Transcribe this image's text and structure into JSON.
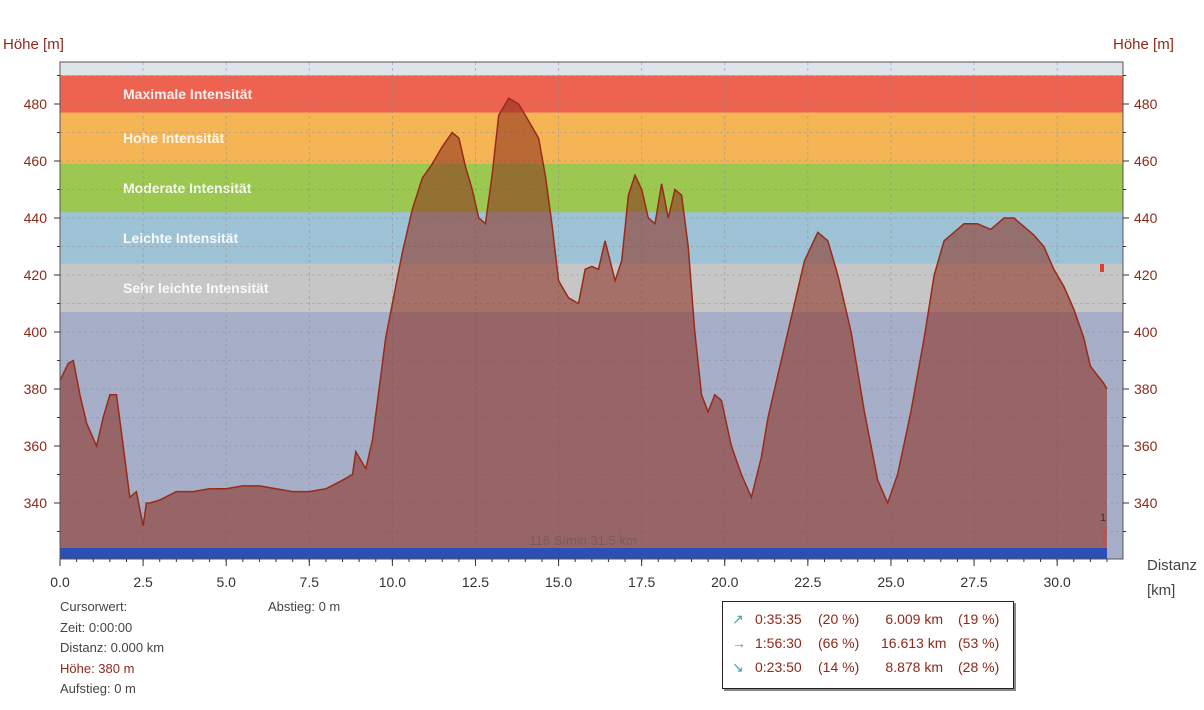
{
  "axes": {
    "y_label_left": "Höhe [m]",
    "y_label_right": "Höhe [m]",
    "x_label_line1": "Distanz",
    "x_label_line2": "[km]"
  },
  "zones": [
    {
      "name": "Maximale Intensität",
      "from": 477,
      "to": 490,
      "color": "#ee6250"
    },
    {
      "name": "Hohe Intensität",
      "from": 459,
      "to": 477,
      "color": "#f5b554"
    },
    {
      "name": "Moderate Intensität",
      "from": 442,
      "to": 459,
      "color": "#9cc750"
    },
    {
      "name": "Leichte Intensität",
      "from": 424,
      "to": 442,
      "color": "#9fc3d6"
    },
    {
      "name": "Sehr leichte Intensität",
      "from": 407,
      "to": 424,
      "color": "#c6c6c6"
    }
  ],
  "base_label": "116 S/min 31.5 km",
  "marker_label": "1",
  "info": {
    "cursor_label": "Cursorwert:",
    "time": "Zeit:  0:00:00",
    "distance": "Distanz:  0.000 km",
    "height": "Höhe:   380 m",
    "ascent": "Aufstieg:  0 m",
    "descent": "Abstieg:  0 m"
  },
  "summary": [
    {
      "icon": "↗",
      "time": "0:35:35",
      "time_pct": "(20 %)",
      "dist": "6.009 km",
      "dist_pct": "(19 %)"
    },
    {
      "icon": "→",
      "time": "1:56:30",
      "time_pct": "(66 %)",
      "dist": "16.613 km",
      "dist_pct": "(53 %)"
    },
    {
      "icon": "↘",
      "time": "0:23:50",
      "time_pct": "(14 %)",
      "dist": "8.878 km",
      "dist_pct": "(28 %)"
    }
  ],
  "chart_data": {
    "type": "area",
    "xlabel": "Distanz [km]",
    "ylabel": "Höhe [m]",
    "xlim": [
      0,
      32
    ],
    "ylim": [
      320,
      490
    ],
    "x_ticks": [
      "0.0",
      "2.5",
      "5.0",
      "7.5",
      "10.0",
      "12.5",
      "15.0",
      "17.5",
      "20.0",
      "22.5",
      "25.0",
      "27.5",
      "30.0"
    ],
    "y_ticks": [
      "340",
      "360",
      "380",
      "400",
      "420",
      "440",
      "460",
      "480"
    ],
    "grid": true,
    "series": [
      {
        "values_x": [
          0,
          0.25,
          0.4,
          0.6,
          0.8,
          1.1,
          1.3,
          1.5,
          1.7,
          1.9,
          2.1,
          2.3,
          2.5,
          2.6,
          2.7,
          3.0,
          3.5,
          4.0,
          4.5,
          5.0,
          5.5,
          6.0,
          6.5,
          7.0,
          7.5,
          8.0,
          8.5,
          8.8,
          8.9,
          9.0,
          9.2,
          9.4,
          9.6,
          9.8,
          10.0,
          10.3,
          10.6,
          10.9,
          11.2,
          11.5,
          11.8,
          12.0,
          12.2,
          12.4,
          12.6,
          12.8,
          13.0,
          13.2,
          13.5,
          13.8,
          14.1,
          14.4,
          14.6,
          14.8,
          15.0,
          15.3,
          15.6,
          15.8,
          16.0,
          16.2,
          16.4,
          16.7,
          16.9,
          17.1,
          17.3,
          17.5,
          17.7,
          17.9,
          18.1,
          18.3,
          18.5,
          18.7,
          18.9,
          19.1,
          19.3,
          19.5,
          19.7,
          19.9,
          20.2,
          20.5,
          20.8,
          21.1,
          21.3,
          21.6,
          22.0,
          22.4,
          22.8,
          23.1,
          23.4,
          23.8,
          24.2,
          24.6,
          24.9,
          25.2,
          25.6,
          26.0,
          26.3,
          26.6,
          26.9,
          27.2,
          27.6,
          28.0,
          28.4,
          28.7,
          29.0,
          29.3,
          29.6,
          29.9,
          30.2,
          30.5,
          30.8,
          31.0,
          31.2,
          31.4,
          31.5
        ],
        "values_y": [
          383,
          389,
          390,
          378,
          368,
          360,
          370,
          378,
          378,
          360,
          342,
          344,
          332,
          340,
          340,
          341,
          344,
          344,
          345,
          345,
          346,
          346,
          345,
          344,
          344,
          345,
          348,
          350,
          358,
          356,
          352,
          362,
          380,
          398,
          410,
          428,
          443,
          454,
          459,
          465,
          470,
          468,
          458,
          450,
          440,
          438,
          455,
          476,
          482,
          480,
          474,
          468,
          455,
          438,
          418,
          412,
          410,
          422,
          423,
          422,
          432,
          418,
          425,
          448,
          455,
          450,
          440,
          438,
          452,
          440,
          450,
          448,
          430,
          400,
          378,
          372,
          378,
          376,
          360,
          350,
          342,
          356,
          370,
          385,
          405,
          425,
          435,
          432,
          420,
          400,
          372,
          348,
          340,
          350,
          372,
          398,
          420,
          432,
          435,
          438,
          438,
          436,
          440,
          440,
          437,
          434,
          430,
          422,
          416,
          408,
          398,
          388,
          385,
          382,
          380
        ]
      }
    ]
  }
}
